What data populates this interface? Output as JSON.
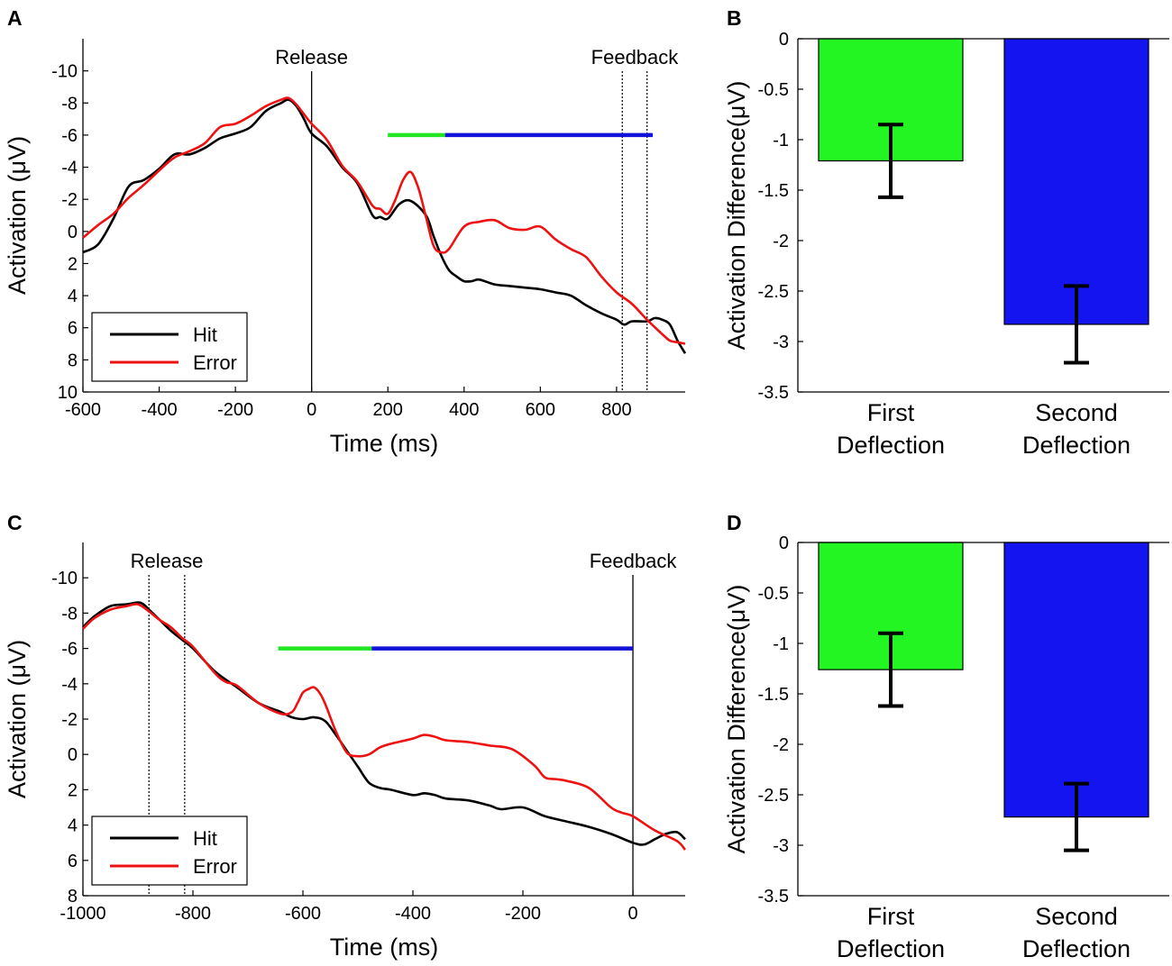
{
  "chart_data": [
    {
      "panel": "A",
      "type": "line",
      "xlabel": "Time (ms)",
      "ylabel": "Activation (μV)",
      "xlim": [
        -600,
        980
      ],
      "ylim": [
        10,
        -12
      ],
      "y_axis_reversed": true,
      "xticks": [
        -600,
        -400,
        -200,
        0,
        200,
        400,
        600,
        800
      ],
      "yticks": [
        10,
        8,
        6,
        4,
        2,
        0,
        -2,
        -4,
        -6,
        -8,
        -10
      ],
      "legend": {
        "position": "bottom-left",
        "entries": [
          "Hit",
          "Error"
        ]
      },
      "annotations": [
        {
          "text": "Release",
          "x": 0,
          "line_style": "solid"
        },
        {
          "text": "Feedback",
          "x_lines": [
            815,
            880
          ],
          "line_style": "dotted"
        }
      ],
      "windows": [
        {
          "name": "First Deflection",
          "start": 200,
          "end": 350,
          "y": -6,
          "color": "#22e622"
        },
        {
          "name": "Second Deflection",
          "start": 350,
          "end": 895,
          "y": -6,
          "color": "#1111d8"
        }
      ],
      "series": [
        {
          "name": "Hit",
          "color": "#000000",
          "x": [
            -600,
            -560,
            -520,
            -480,
            -440,
            -400,
            -360,
            -320,
            -280,
            -240,
            -200,
            -160,
            -120,
            -80,
            -60,
            -40,
            -20,
            0,
            40,
            80,
            120,
            160,
            180,
            200,
            230,
            260,
            300,
            320,
            340,
            360,
            380,
            400,
            420,
            440,
            480,
            520,
            560,
            600,
            640,
            680,
            720,
            760,
            800,
            820,
            840,
            880,
            900,
            920,
            940,
            960,
            980
          ],
          "y": [
            1.3,
            0.8,
            -0.8,
            -2.8,
            -3.2,
            -3.9,
            -4.8,
            -4.8,
            -5.2,
            -5.8,
            -6.1,
            -6.5,
            -7.5,
            -8.0,
            -8.2,
            -7.8,
            -7.0,
            -6.1,
            -5.3,
            -4.0,
            -3.0,
            -1.0,
            -0.9,
            -0.8,
            -1.7,
            -1.9,
            -1.0,
            0.3,
            1.5,
            2.4,
            2.8,
            3.1,
            3.1,
            3.0,
            3.3,
            3.4,
            3.5,
            3.6,
            3.8,
            4.0,
            4.6,
            5.1,
            5.5,
            5.8,
            5.6,
            5.6,
            5.4,
            5.5,
            5.8,
            6.8,
            7.6
          ]
        },
        {
          "name": "Error",
          "color": "#ee1111",
          "x": [
            -600,
            -560,
            -520,
            -480,
            -440,
            -400,
            -360,
            -320,
            -280,
            -240,
            -200,
            -160,
            -120,
            -80,
            -60,
            -40,
            -20,
            0,
            40,
            80,
            120,
            160,
            180,
            200,
            220,
            240,
            260,
            280,
            300,
            320,
            340,
            360,
            400,
            440,
            480,
            520,
            560,
            600,
            640,
            680,
            720,
            760,
            800,
            840,
            880,
            920,
            940,
            960,
            980
          ],
          "y": [
            0.4,
            -0.4,
            -1.1,
            -2.1,
            -2.9,
            -3.8,
            -4.6,
            -5.0,
            -5.5,
            -6.5,
            -6.7,
            -7.2,
            -7.8,
            -8.2,
            -8.3,
            -7.9,
            -7.3,
            -6.7,
            -5.7,
            -4.1,
            -3.1,
            -1.6,
            -1.4,
            -1.1,
            -2.0,
            -3.2,
            -3.7,
            -2.7,
            -0.9,
            0.9,
            1.3,
            1.1,
            -0.3,
            -0.6,
            -0.7,
            -0.2,
            -0.1,
            -0.3,
            0.5,
            1.1,
            1.6,
            2.8,
            3.8,
            4.5,
            5.5,
            6.4,
            6.8,
            6.9,
            7.0
          ]
        }
      ]
    },
    {
      "panel": "B",
      "type": "bar",
      "ylabel": "Activation Difference(μV)",
      "ylim": [
        -3.5,
        0
      ],
      "yticks": [
        0,
        -0.5,
        -1,
        -1.5,
        -2,
        -2.5,
        -3,
        -3.5
      ],
      "ytick_labels": [
        "0",
        "-0.5",
        "-1",
        "-1.5",
        "-2",
        "-2.5",
        "-3",
        "-3.5"
      ],
      "categories": [
        [
          "First",
          "Deflection"
        ],
        [
          "Second",
          "Deflection"
        ]
      ],
      "values": [
        -1.21,
        -2.83
      ],
      "error": [
        0.36,
        0.38
      ],
      "colors": [
        "#22f522",
        "#1414f0"
      ]
    },
    {
      "panel": "C",
      "type": "line",
      "xlabel": "Time (ms)",
      "ylabel": "Activation (μV)",
      "xlim": [
        -1000,
        95
      ],
      "ylim": [
        8,
        -12
      ],
      "y_axis_reversed": true,
      "xticks": [
        -1000,
        -800,
        -600,
        -400,
        -200,
        0
      ],
      "yticks": [
        8,
        6,
        4,
        2,
        0,
        -2,
        -4,
        -6,
        -8,
        -10
      ],
      "legend": {
        "position": "bottom-left",
        "entries": [
          "Hit",
          "Error"
        ]
      },
      "annotations": [
        {
          "text": "Release",
          "x_lines": [
            -880,
            -815
          ],
          "line_style": "dotted"
        },
        {
          "text": "Feedback",
          "x": 0,
          "line_style": "solid"
        }
      ],
      "windows": [
        {
          "name": "First Deflection",
          "start": -645,
          "end": -475,
          "y": -6,
          "color": "#22e622"
        },
        {
          "name": "Second Deflection",
          "start": -475,
          "end": 0,
          "y": -6,
          "color": "#1111d8"
        }
      ],
      "series": [
        {
          "name": "Hit",
          "color": "#000000",
          "x": [
            -1000,
            -980,
            -950,
            -920,
            -900,
            -890,
            -880,
            -860,
            -840,
            -820,
            -800,
            -760,
            -720,
            -680,
            -640,
            -620,
            -600,
            -580,
            -560,
            -540,
            -520,
            -500,
            -480,
            -460,
            -440,
            -400,
            -380,
            -360,
            -340,
            -300,
            -260,
            -240,
            -200,
            -160,
            -120,
            -80,
            -40,
            0,
            20,
            40,
            60,
            80,
            95
          ],
          "y": [
            -7.2,
            -7.8,
            -8.4,
            -8.5,
            -8.6,
            -8.5,
            -8.2,
            -7.6,
            -7.0,
            -6.5,
            -6.0,
            -4.7,
            -3.8,
            -2.9,
            -2.4,
            -2.1,
            -2.0,
            -2.1,
            -1.9,
            -1.1,
            -0.2,
            0.7,
            1.6,
            1.9,
            2.0,
            2.3,
            2.2,
            2.3,
            2.5,
            2.6,
            2.9,
            3.1,
            3.0,
            3.5,
            3.8,
            4.1,
            4.5,
            5.0,
            5.1,
            4.8,
            4.5,
            4.4,
            4.8
          ]
        },
        {
          "name": "Error",
          "color": "#ee1111",
          "x": [
            -1000,
            -980,
            -950,
            -920,
            -900,
            -880,
            -860,
            -840,
            -820,
            -800,
            -760,
            -740,
            -720,
            -680,
            -640,
            -620,
            -610,
            -600,
            -590,
            -580,
            -570,
            -560,
            -540,
            -520,
            -500,
            -480,
            -460,
            -440,
            -400,
            -380,
            -360,
            -340,
            -300,
            -260,
            -220,
            -180,
            -160,
            -140,
            -120,
            -80,
            -40,
            -20,
            0,
            40,
            80,
            95
          ],
          "y": [
            -7.1,
            -7.7,
            -8.2,
            -8.4,
            -8.5,
            -8.1,
            -7.6,
            -7.2,
            -6.6,
            -6.1,
            -4.6,
            -4.1,
            -3.9,
            -2.9,
            -2.3,
            -2.4,
            -2.9,
            -3.5,
            -3.7,
            -3.8,
            -3.5,
            -2.9,
            -1.3,
            -0.1,
            0.1,
            0.0,
            -0.4,
            -0.6,
            -0.9,
            -1.1,
            -1.0,
            -0.8,
            -0.7,
            -0.5,
            -0.3,
            0.6,
            1.3,
            1.4,
            1.5,
            1.9,
            3.0,
            3.3,
            3.5,
            4.3,
            4.9,
            5.4
          ]
        }
      ]
    },
    {
      "panel": "D",
      "type": "bar",
      "ylabel": "Activation Difference(μV)",
      "ylim": [
        -3.5,
        0
      ],
      "yticks": [
        0,
        -0.5,
        -1,
        -1.5,
        -2,
        -2.5,
        -3,
        -3.5
      ],
      "ytick_labels": [
        "0",
        "-0.5",
        "-1",
        "-1.5",
        "-2",
        "-2.5",
        "-3",
        "-3.5"
      ],
      "categories": [
        [
          "First",
          "Deflection"
        ],
        [
          "Second",
          "Deflection"
        ]
      ],
      "values": [
        -1.26,
        -2.72
      ],
      "error": [
        0.36,
        0.33
      ],
      "colors": [
        "#22f522",
        "#1414f0"
      ]
    }
  ]
}
